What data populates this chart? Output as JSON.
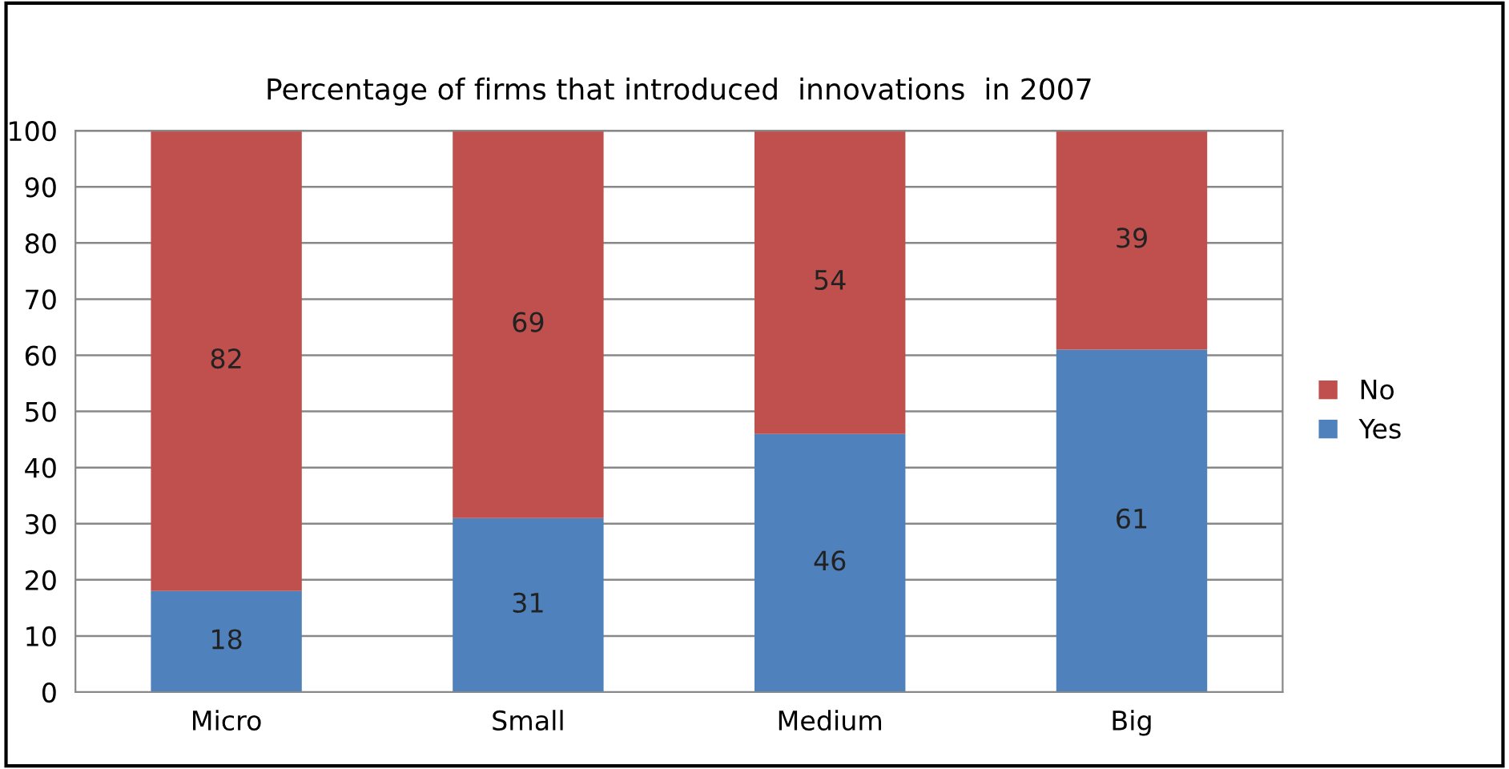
{
  "chart_data": {
    "type": "bar",
    "title": "Percentage of firms that introduced  innovations  in 2007",
    "categories": [
      "Micro",
      "Small",
      "Medium",
      "Big"
    ],
    "series": [
      {
        "name": "Yes",
        "color": "#4f81bd",
        "values": [
          18,
          31,
          46,
          61
        ]
      },
      {
        "name": "No",
        "color": "#c0504d",
        "values": [
          82,
          69,
          54,
          39
        ]
      }
    ],
    "stacked": true,
    "data_labels": true,
    "ylim": [
      0,
      100
    ],
    "yticks": [
      0,
      10,
      20,
      30,
      40,
      50,
      60,
      70,
      80,
      90,
      100
    ],
    "grid": "y",
    "legend": "right"
  }
}
